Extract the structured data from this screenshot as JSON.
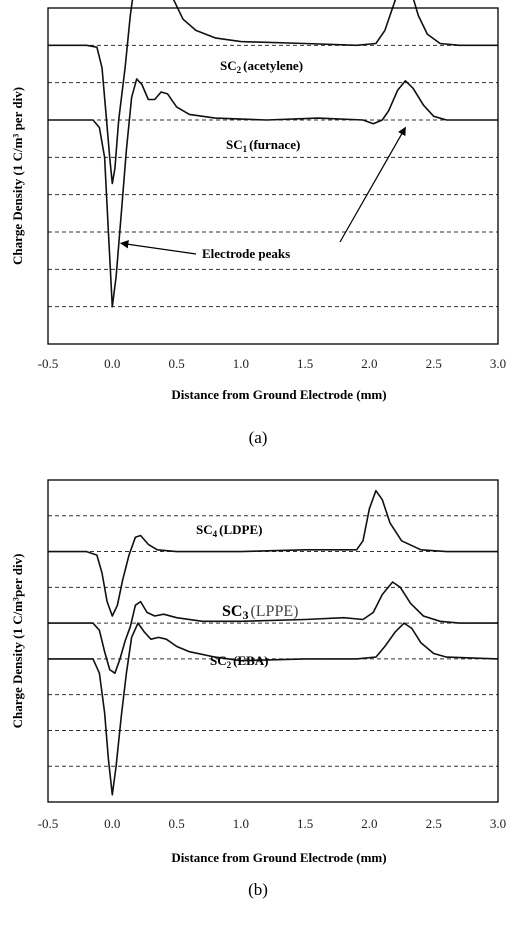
{
  "chart_data": [
    {
      "type": "line",
      "panel": "(a)",
      "caption": "(a)",
      "xlabel": "Distance from Ground Electrode (mm)",
      "ylabel": "Charge Density (1 C/m³ per div)",
      "xlim": [
        -0.5,
        3.0
      ],
      "xticks": [
        "-0.5",
        "0.0",
        "0.5",
        "1.0",
        "1.5",
        "2.0",
        "2.5",
        "3.0"
      ],
      "grid": "horizontal dashed",
      "series": [
        {
          "name": "SC2 (acetylene)",
          "label_main": "SC",
          "label_sub": "2",
          "label_rest": "(acetylene)",
          "baseline_div": 8.0,
          "points": [
            [
              -0.5,
              0
            ],
            [
              -0.2,
              0
            ],
            [
              -0.12,
              -0.05
            ],
            [
              -0.08,
              -0.6
            ],
            [
              -0.05,
              -1.8
            ],
            [
              -0.02,
              -3.0
            ],
            [
              0.0,
              -3.7
            ],
            [
              0.02,
              -3.3
            ],
            [
              0.05,
              -2.0
            ],
            [
              0.1,
              -0.6
            ],
            [
              0.14,
              0.8
            ],
            [
              0.18,
              1.8
            ],
            [
              0.22,
              2.4
            ],
            [
              0.27,
              1.9
            ],
            [
              0.32,
              1.5
            ],
            [
              0.38,
              1.6
            ],
            [
              0.42,
              1.6
            ],
            [
              0.48,
              1.2
            ],
            [
              0.55,
              0.7
            ],
            [
              0.65,
              0.4
            ],
            [
              0.8,
              0.2
            ],
            [
              1.0,
              0.1
            ],
            [
              1.5,
              0.05
            ],
            [
              1.9,
              0
            ],
            [
              2.05,
              0.05
            ],
            [
              2.12,
              0.4
            ],
            [
              2.2,
              1.2
            ],
            [
              2.27,
              1.75
            ],
            [
              2.32,
              1.5
            ],
            [
              2.38,
              0.8
            ],
            [
              2.45,
              0.3
            ],
            [
              2.55,
              0.05
            ],
            [
              2.7,
              0
            ],
            [
              3.0,
              0
            ]
          ]
        },
        {
          "name": "SC1 (furnace)",
          "label_main": "SC",
          "label_sub": "1",
          "label_rest": "(furnace)",
          "baseline_div": 6.0,
          "points": [
            [
              -0.5,
              0
            ],
            [
              -0.15,
              0
            ],
            [
              -0.1,
              -0.2
            ],
            [
              -0.06,
              -1.0
            ],
            [
              -0.03,
              -3.0
            ],
            [
              0.0,
              -5.0
            ],
            [
              0.03,
              -4.2
            ],
            [
              0.07,
              -2.5
            ],
            [
              0.11,
              -0.8
            ],
            [
              0.15,
              0.6
            ],
            [
              0.19,
              1.1
            ],
            [
              0.23,
              0.95
            ],
            [
              0.28,
              0.55
            ],
            [
              0.33,
              0.55
            ],
            [
              0.38,
              0.75
            ],
            [
              0.43,
              0.7
            ],
            [
              0.5,
              0.35
            ],
            [
              0.6,
              0.15
            ],
            [
              0.8,
              0.05
            ],
            [
              1.2,
              0
            ],
            [
              1.6,
              0.05
            ],
            [
              1.95,
              0
            ],
            [
              2.03,
              -0.1
            ],
            [
              2.1,
              0
            ],
            [
              2.15,
              0.25
            ],
            [
              2.22,
              0.8
            ],
            [
              2.28,
              1.05
            ],
            [
              2.34,
              0.85
            ],
            [
              2.42,
              0.4
            ],
            [
              2.5,
              0.1
            ],
            [
              2.6,
              0
            ],
            [
              3.0,
              0
            ]
          ]
        }
      ],
      "annotations": [
        {
          "text": "Electrode peaks",
          "arrows_to": [
            [
              0.02,
              2.7
            ],
            [
              2.28,
              5.8
            ]
          ]
        }
      ]
    },
    {
      "type": "line",
      "panel": "(b)",
      "caption": "(b)",
      "xlabel": "Distance from Ground Electrode (mm)",
      "ylabel": "Charge Density (1 C/m³per div)",
      "xlim": [
        -0.5,
        3.0
      ],
      "xticks": [
        "-0.5",
        "0.0",
        "0.5",
        "1.0",
        "1.5",
        "2.0",
        "2.5",
        "3.0"
      ],
      "grid": "horizontal dashed",
      "series": [
        {
          "name": "SC4 (LDPE)",
          "label_main": "SC",
          "label_sub": "4",
          "label_rest": "(LDPE)",
          "baseline_div": 7.0,
          "points": [
            [
              -0.5,
              0
            ],
            [
              -0.2,
              0
            ],
            [
              -0.12,
              -0.1
            ],
            [
              -0.08,
              -0.6
            ],
            [
              -0.04,
              -1.4
            ],
            [
              0.0,
              -1.8
            ],
            [
              0.04,
              -1.5
            ],
            [
              0.08,
              -0.8
            ],
            [
              0.13,
              -0.1
            ],
            [
              0.18,
              0.4
            ],
            [
              0.22,
              0.45
            ],
            [
              0.28,
              0.2
            ],
            [
              0.35,
              0.05
            ],
            [
              0.5,
              0
            ],
            [
              1.0,
              0
            ],
            [
              1.5,
              0.05
            ],
            [
              1.9,
              0.05
            ],
            [
              1.95,
              0.3
            ],
            [
              2.0,
              1.2
            ],
            [
              2.05,
              1.7
            ],
            [
              2.1,
              1.45
            ],
            [
              2.16,
              0.8
            ],
            [
              2.25,
              0.3
            ],
            [
              2.4,
              0.05
            ],
            [
              2.6,
              0
            ],
            [
              3.0,
              0
            ]
          ]
        },
        {
          "name": "SC3 (LPPE)",
          "label_main": "SC",
          "label_sub": "3",
          "label_rest": "(LPPE)",
          "label_large": true,
          "baseline_div": 5.0,
          "points": [
            [
              -0.5,
              0
            ],
            [
              -0.15,
              0
            ],
            [
              -0.1,
              -0.2
            ],
            [
              -0.06,
              -0.8
            ],
            [
              -0.02,
              -1.3
            ],
            [
              0.02,
              -1.4
            ],
            [
              0.06,
              -1.0
            ],
            [
              0.1,
              -0.5
            ],
            [
              0.14,
              -0.1
            ],
            [
              0.18,
              0.5
            ],
            [
              0.22,
              0.6
            ],
            [
              0.27,
              0.3
            ],
            [
              0.33,
              0.2
            ],
            [
              0.4,
              0.25
            ],
            [
              0.5,
              0.15
            ],
            [
              0.7,
              0.05
            ],
            [
              1.0,
              0.05
            ],
            [
              1.5,
              0.1
            ],
            [
              1.8,
              0.15
            ],
            [
              1.95,
              0.1
            ],
            [
              2.03,
              0.3
            ],
            [
              2.1,
              0.8
            ],
            [
              2.18,
              1.15
            ],
            [
              2.24,
              1.0
            ],
            [
              2.32,
              0.55
            ],
            [
              2.42,
              0.2
            ],
            [
              2.55,
              0.05
            ],
            [
              2.7,
              0
            ],
            [
              3.0,
              0
            ]
          ]
        },
        {
          "name": "SC2 (EBA)",
          "label_main": "SC",
          "label_sub": "2",
          "label_rest": "(EBA)",
          "baseline_div": 4.0,
          "points": [
            [
              -0.5,
              0
            ],
            [
              -0.15,
              0
            ],
            [
              -0.1,
              -0.4
            ],
            [
              -0.06,
              -1.5
            ],
            [
              -0.03,
              -2.8
            ],
            [
              0.0,
              -3.8
            ],
            [
              0.03,
              -3.0
            ],
            [
              0.07,
              -1.6
            ],
            [
              0.11,
              -0.4
            ],
            [
              0.15,
              0.6
            ],
            [
              0.2,
              1.0
            ],
            [
              0.25,
              0.75
            ],
            [
              0.3,
              0.55
            ],
            [
              0.36,
              0.6
            ],
            [
              0.42,
              0.55
            ],
            [
              0.5,
              0.35
            ],
            [
              0.6,
              0.2
            ],
            [
              0.8,
              0.05
            ],
            [
              1.0,
              -0.05
            ],
            [
              1.5,
              0
            ],
            [
              1.9,
              0
            ],
            [
              2.05,
              0.05
            ],
            [
              2.12,
              0.35
            ],
            [
              2.2,
              0.75
            ],
            [
              2.27,
              1.0
            ],
            [
              2.33,
              0.85
            ],
            [
              2.4,
              0.45
            ],
            [
              2.5,
              0.15
            ],
            [
              2.6,
              0.05
            ],
            [
              3.0,
              0
            ]
          ]
        }
      ],
      "annotations": []
    }
  ]
}
